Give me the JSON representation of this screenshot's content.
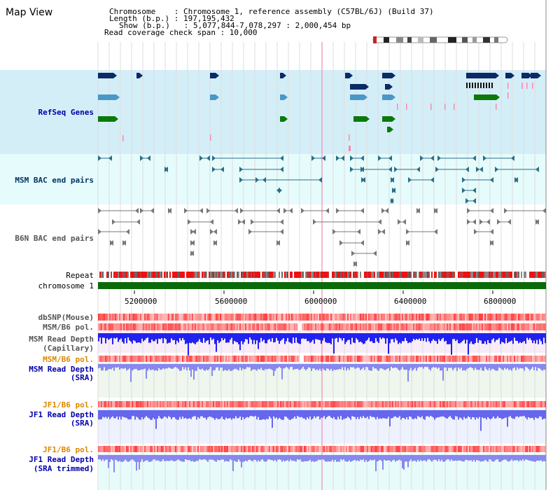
{
  "header": {
    "title": "Map View",
    "info_lines": [
      "Chromosome    : Chromosome 1, reference assembly (C57BL/6J) (Build 37)",
      "Length (b.p.) : 197,195,432",
      "Show (b.p.)   : 5,077,844-7,078,297 : 2,000,454 bp",
      "Read coverage check span : 10,000"
    ]
  },
  "tracks": {
    "refseq": "RefSeq Genes",
    "msm_bac": "MSM BAC end pairs",
    "b6n_bac": "B6N BAC end pairs",
    "repeat": "Repeat",
    "chromosome": "chromosome 1",
    "dbsnp": "dbSNP(Mouse)",
    "msm_b6_pol_1": "MSM/B6 pol.",
    "msm_depth_cap_1": "MSM Read Depth",
    "msm_depth_cap_2": "(Capillary)",
    "msm_b6_pol_2": "MSM/B6 pol.",
    "msm_depth_sra_1": "MSM Read Depth",
    "msm_depth_sra_2": "(SRA)",
    "jf1_pol_1": "JF1/B6 pol.",
    "jf1_depth_sra_1": "JF1 Read Depth",
    "jf1_depth_sra_2": "(SRA)",
    "jf1_pol_2": "JF1/B6 pol.",
    "jf1_depth_trim_1": "JF1 Read Depth",
    "jf1_depth_trim_2": "(SRA trimmed)"
  },
  "axis": {
    "ticks": [
      "5200000",
      "5600000",
      "6000000",
      "6400000",
      "6800000"
    ]
  },
  "colors": {
    "refseq_bg": "#d4eef8",
    "bac_bg": "#e6fbfb",
    "pale_bg": "#eef6ee",
    "chromosome": "#0a6a0a",
    "gene_dark": "#0b2a66",
    "gene_mid": "#4a98c8",
    "gene_green": "#0a7a0a",
    "bac_teal": "#2a6e88",
    "bac_grey": "#777777"
  }
}
